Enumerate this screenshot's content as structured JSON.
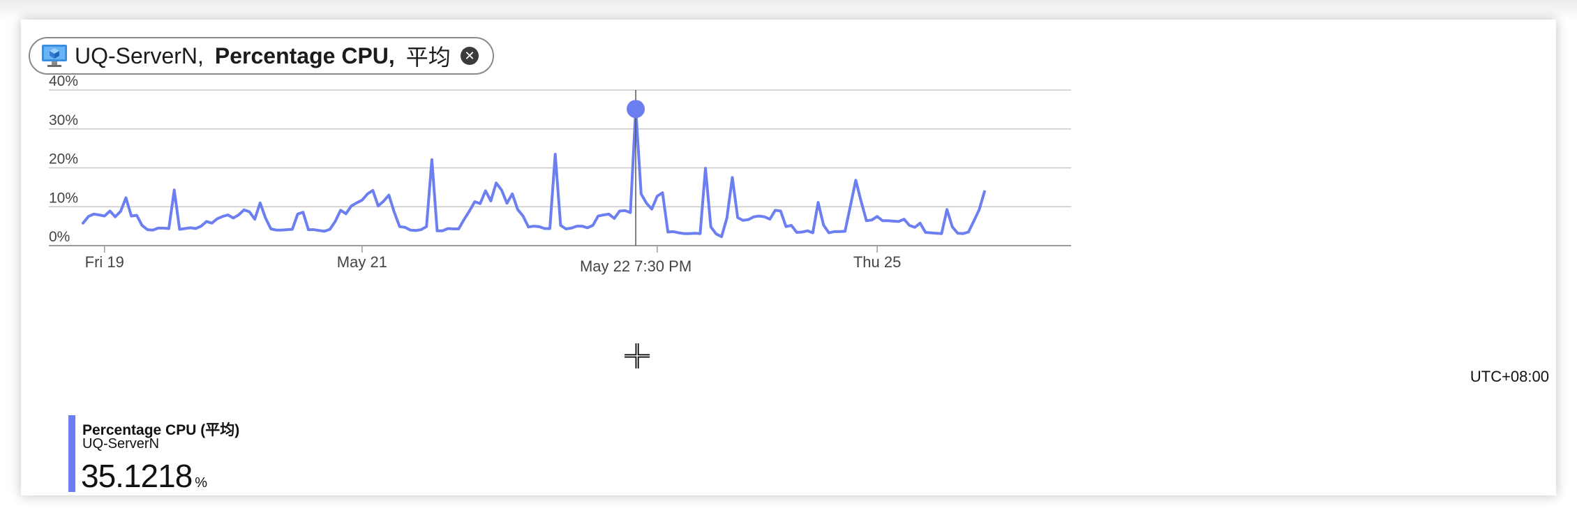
{
  "filter_pill": {
    "resource": "UQ-ServerN,",
    "metric": "Percentage CPU,",
    "aggregation": "平均",
    "close_icon": "close-circle-icon",
    "resource_icon": "virtual-machine-icon"
  },
  "timezone": "UTC+08:00",
  "hover": {
    "label": "May 22 7:30 PM",
    "value": 35.1218
  },
  "legend": {
    "title": "Percentage CPU (平均)",
    "resource": "UQ-ServerN",
    "value": "35.1218",
    "unit": "%"
  },
  "colors": {
    "series": "#6b7ff0",
    "grid": "#c8c8c8",
    "cursor": "#555555"
  },
  "chart_data": {
    "type": "line",
    "title": "",
    "xlabel": "",
    "ylabel": "",
    "ylim": [
      0,
      40
    ],
    "y_ticks": [
      "0%",
      "10%",
      "20%",
      "30%",
      "40%"
    ],
    "x_ticks": [
      "Fri 19",
      "May 21",
      "Thu 25"
    ],
    "grid": true,
    "series": [
      {
        "name": "Percentage CPU (平均)",
        "x_start": "May 18 8:00 PM",
        "interval_hours": 1,
        "values": [
          5.8,
          7.5,
          8.1,
          7.9,
          7.6,
          8.9,
          7.4,
          8.8,
          12.3,
          7.6,
          7.8,
          5.2,
          4.1,
          4.0,
          4.5,
          4.5,
          4.4,
          14.3,
          4.2,
          4.4,
          4.6,
          4.4,
          5.0,
          6.2,
          5.8,
          6.9,
          7.5,
          7.9,
          7.1,
          7.9,
          9.2,
          8.7,
          6.8,
          11.0,
          7.1,
          4.3,
          4.0,
          4.0,
          4.1,
          4.2,
          8.1,
          8.6,
          4.1,
          4.1,
          3.9,
          3.7,
          4.2,
          6.2,
          9.1,
          8.2,
          10.2,
          11.0,
          11.7,
          13.3,
          14.2,
          10.2,
          11.4,
          13.0,
          8.6,
          4.9,
          4.7,
          4.0,
          3.9,
          4.1,
          4.9,
          22.1,
          3.8,
          3.8,
          4.4,
          4.3,
          4.3,
          6.7,
          8.9,
          11.3,
          10.8,
          14.1,
          11.5,
          16.1,
          14.3,
          10.9,
          13.3,
          9.3,
          7.6,
          4.8,
          5.0,
          4.9,
          4.4,
          4.4,
          23.5,
          5.2,
          4.3,
          4.5,
          5.0,
          5.0,
          4.6,
          5.2,
          7.6,
          7.9,
          8.1,
          7.0,
          8.9,
          9.0,
          8.5,
          35.1,
          13.3,
          10.9,
          9.4,
          12.7,
          13.6,
          3.5,
          3.6,
          3.3,
          3.1,
          3.1,
          3.2,
          3.1,
          19.9,
          4.8,
          3.0,
          2.3,
          7.2,
          17.5,
          7.2,
          6.5,
          6.7,
          7.4,
          7.6,
          7.4,
          6.8,
          9.1,
          8.9,
          4.9,
          5.2,
          3.4,
          3.5,
          3.8,
          3.3,
          11.1,
          5.3,
          3.3,
          3.6,
          3.6,
          3.7,
          10.2,
          16.8,
          11.4,
          6.4,
          6.6,
          7.5,
          6.4,
          6.4,
          6.3,
          6.2,
          6.8,
          5.2,
          4.7,
          5.8,
          3.4,
          3.3,
          3.2,
          3.1,
          9.3,
          4.8,
          3.2,
          3.1,
          3.5,
          6.3,
          9.2,
          13.9
        ]
      }
    ]
  }
}
